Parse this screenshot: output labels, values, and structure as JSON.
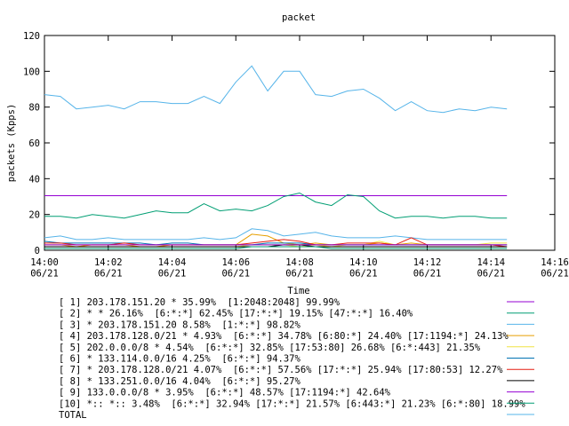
{
  "chart_data": {
    "type": "line",
    "title": "packet",
    "xlabel": "Time",
    "ylabel": "packets (Kpps)",
    "x": [
      0,
      0.5,
      1,
      1.5,
      2,
      2.5,
      3,
      3.5,
      4,
      4.5,
      5,
      5.5,
      6,
      6.5,
      7,
      7.5,
      8,
      8.5,
      9,
      9.5,
      10,
      10.5,
      11,
      11.5,
      12,
      12.5,
      13,
      13.5,
      14,
      14.5
    ],
    "xlim": [
      0,
      16
    ],
    "xticks": [
      {
        "value": 0,
        "label": "14:00\n06/21"
      },
      {
        "value": 2,
        "label": "14:02\n06/21"
      },
      {
        "value": 4,
        "label": "14:04\n06/21"
      },
      {
        "value": 6,
        "label": "14:06\n06/21"
      },
      {
        "value": 8,
        "label": "14:08\n06/21"
      },
      {
        "value": 10,
        "label": "14:10\n06/21"
      },
      {
        "value": 12,
        "label": "14:12\n06/21"
      },
      {
        "value": 14,
        "label": "14:14\n06/21"
      },
      {
        "value": 16,
        "label": "14:16\n06/21"
      }
    ],
    "ylim": [
      0,
      120
    ],
    "yticks": [
      0,
      20,
      40,
      60,
      80,
      100,
      120
    ],
    "series": [
      {
        "name": "[ 1] 203.178.151.20 * 35.99%  [1:2048:2048] 99.99%",
        "color": "#9400d3",
        "values": [
          30.5,
          30.5,
          30.5,
          30.5,
          30.5,
          30.5,
          30.5,
          30.5,
          30.5,
          30.5,
          30.5,
          30.5,
          30.5,
          30.5,
          30.5,
          30.5,
          30.5,
          30.5,
          30.5,
          30.5,
          30.5,
          30.5,
          30.5,
          30.5,
          30.5,
          30.5,
          30.5,
          30.5,
          30.5,
          30.5
        ]
      },
      {
        "name": "[ 2] * * 26.16%  [6:*:*] 62.45% [17:*:*] 19.15% [47:*:*] 16.40%",
        "color": "#009e73",
        "values": [
          19,
          19,
          18,
          20,
          19,
          18,
          20,
          22,
          21,
          21,
          26,
          22,
          23,
          22,
          25,
          30,
          32,
          27,
          25,
          31,
          30,
          22,
          18,
          19,
          19,
          18,
          19,
          19,
          18,
          18
        ]
      },
      {
        "name": "[ 3] * 203.178.151.20 8.58%  [1:*:*] 98.82%",
        "color": "#56b4e9",
        "values": [
          7,
          8,
          6,
          6,
          7,
          6,
          6,
          6,
          6,
          6,
          7,
          6,
          7,
          12,
          11,
          8,
          9,
          10,
          8,
          7,
          7,
          7,
          8,
          7,
          6,
          6,
          6,
          6,
          6,
          6
        ]
      },
      {
        "name": "[ 4] 203.178.128.0/21 * 4.93%  [6:*:*] 34.78% [6:80:*] 24.40% [17:1194:*] 24.13%",
        "color": "#e69f00",
        "values": [
          3,
          3,
          2,
          3,
          3,
          3,
          2,
          2,
          3,
          3,
          3,
          3,
          3,
          9,
          8,
          4,
          3,
          4,
          3,
          3,
          3,
          4,
          3,
          4,
          3,
          3,
          3,
          3,
          3,
          3
        ]
      },
      {
        "name": "[ 5] 202.0.0.0/8 * 4.54%  [6:*:*] 32.85% [17:53:80] 26.68% [6:*:443] 21.35%",
        "color": "#f0e442",
        "values": [
          2,
          2,
          2,
          2,
          2,
          2,
          2,
          2,
          2,
          2,
          2,
          2,
          2,
          3,
          3,
          3,
          2,
          3,
          2,
          3,
          3,
          5,
          3,
          3,
          3,
          3,
          3,
          3,
          4,
          4
        ]
      },
      {
        "name": "[ 6] * 133.114.0.0/16 4.25%  [6:*:*] 94.37%",
        "color": "#0072b2",
        "values": [
          5,
          4,
          4,
          4,
          4,
          4,
          4,
          3,
          4,
          4,
          3,
          3,
          3,
          3,
          4,
          4,
          4,
          3,
          3,
          3,
          3,
          3,
          3,
          3,
          3,
          3,
          3,
          3,
          3,
          3
        ]
      },
      {
        "name": "[ 7] * 203.178.128.0/21 4.07%  [6:*:*] 57.56% [17:*:*] 25.94% [17:80:53] 12.27%",
        "color": "#e51e10",
        "values": [
          4,
          4,
          3,
          3,
          3,
          4,
          3,
          3,
          3,
          3,
          3,
          3,
          3,
          4,
          5,
          6,
          5,
          3,
          3,
          4,
          4,
          4,
          3,
          7,
          3,
          3,
          3,
          3,
          3,
          2
        ]
      },
      {
        "name": "[ 8] * 133.251.0.0/16 4.04%  [6:*:*] 95.27%",
        "color": "#000000",
        "values": [
          2,
          2,
          2,
          2,
          2,
          2,
          2,
          2,
          2,
          2,
          2,
          2,
          2,
          2,
          2,
          3,
          3,
          2,
          2,
          2,
          2,
          2,
          2,
          2,
          2,
          2,
          2,
          2,
          2,
          2
        ]
      },
      {
        "name": "[ 9] 133.0.0.0/8 * 3.95%  [6:*:*] 48.57% [17:1194:*] 42.64%",
        "color": "#9400d3",
        "values": [
          3,
          3,
          3,
          3,
          3,
          3,
          3,
          3,
          3,
          3,
          3,
          3,
          3,
          3,
          3,
          3,
          3,
          3,
          3,
          3,
          3,
          3,
          3,
          3,
          3,
          3,
          3,
          3,
          3,
          3
        ]
      },
      {
        "name": "[10] *:: *:: 3.48%  [6:*:*] 32.94% [17:*:*] 21.57% [6:443:*] 21.23% [6:*:80] 18.99%",
        "color": "#009e73",
        "values": [
          1,
          1,
          1,
          1,
          1,
          1,
          1,
          1,
          1,
          1,
          1,
          1,
          1,
          2,
          2,
          2,
          2,
          2,
          1,
          1,
          1,
          1,
          1,
          1,
          1,
          1,
          1,
          1,
          1,
          1
        ]
      },
      {
        "name": "TOTAL",
        "color": "#56b4e9",
        "values": [
          87,
          86,
          79,
          80,
          81,
          79,
          83,
          83,
          82,
          82,
          86,
          82,
          94,
          103,
          89,
          100,
          100,
          87,
          86,
          89,
          90,
          85,
          78,
          83,
          78,
          77,
          79,
          78,
          80,
          79
        ]
      }
    ]
  }
}
